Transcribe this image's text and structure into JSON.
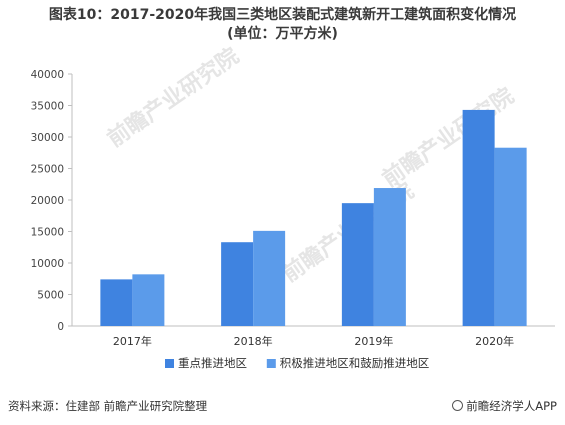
{
  "title_line1": "图表10：2017-2020年我国三类地区装配式建筑新开工建筑面积变化情况",
  "title_line2": "(单位：万平方米)",
  "source": "资料来源：住建部 前瞻产业研究院整理",
  "brand": "前瞻经济学人APP",
  "watermark": "前瞻产业研究院",
  "chart_data": {
    "type": "bar",
    "categories": [
      "2017年",
      "2018年",
      "2019年",
      "2020年"
    ],
    "series": [
      {
        "name": "重点推进地区",
        "values": [
          7400,
          13300,
          19500,
          34300
        ],
        "color": "#3f83e0"
      },
      {
        "name": "积极推进地区和鼓励推进地区",
        "values": [
          8200,
          15100,
          21900,
          28300
        ],
        "color": "#5b9bea"
      }
    ],
    "title": "图表10：2017-2020年我国三类地区装配式建筑新开工建筑面积变化情况",
    "xlabel": "",
    "ylabel": "",
    "ylim": [
      0,
      40000
    ],
    "yticks": [
      0,
      5000,
      10000,
      15000,
      20000,
      25000,
      30000,
      35000,
      40000
    ],
    "grid": false,
    "legend": "bottom"
  }
}
